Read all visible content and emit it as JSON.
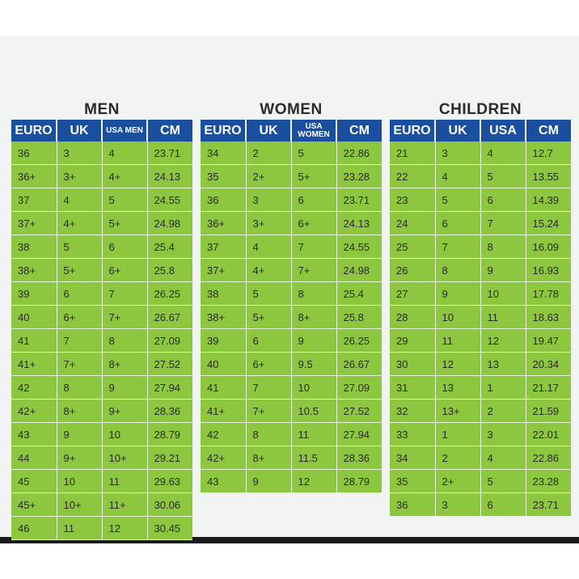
{
  "men": {
    "title": "MEN",
    "headers": [
      "EURO",
      "UK",
      "USA MEN",
      "CM"
    ],
    "rows": [
      [
        "36",
        "3",
        "4",
        "23.71"
      ],
      [
        "36+",
        "3+",
        "4+",
        "24.13"
      ],
      [
        "37",
        "4",
        "5",
        "24.55"
      ],
      [
        "37+",
        "4+",
        "5+",
        "24.98"
      ],
      [
        "38",
        "5",
        "6",
        "25.4"
      ],
      [
        "38+",
        "5+",
        "6+",
        "25.8"
      ],
      [
        "39",
        "6",
        "7",
        "26.25"
      ],
      [
        "40",
        "6+",
        "7+",
        "26.67"
      ],
      [
        "41",
        "7",
        "8",
        "27.09"
      ],
      [
        "41+",
        "7+",
        "8+",
        "27.52"
      ],
      [
        "42",
        "8",
        "9",
        "27.94"
      ],
      [
        "42+",
        "8+",
        "9+",
        "28.36"
      ],
      [
        "43",
        "9",
        "10",
        "28.79"
      ],
      [
        "44",
        "9+",
        "10+",
        "29.21"
      ],
      [
        "45",
        "10",
        "11",
        "29.63"
      ],
      [
        "45+",
        "10+",
        "11+",
        "30.06"
      ],
      [
        "46",
        "11",
        "12",
        "30.45"
      ]
    ]
  },
  "women": {
    "title": "WOMEN",
    "headers": [
      "EURO",
      "UK",
      "USA WOMEN",
      "CM"
    ],
    "rows": [
      [
        "34",
        "2",
        "5",
        "22.86"
      ],
      [
        "35",
        "2+",
        "5+",
        "23.28"
      ],
      [
        "36",
        "3",
        "6",
        "23.71"
      ],
      [
        "36+",
        "3+",
        "6+",
        "24.13"
      ],
      [
        "37",
        "4",
        "7",
        "24.55"
      ],
      [
        "37+",
        "4+",
        "7+",
        "24.98"
      ],
      [
        "38",
        "5",
        "8",
        "25.4"
      ],
      [
        "38+",
        "5+",
        "8+",
        "25.8"
      ],
      [
        "39",
        "6",
        "9",
        "26.25"
      ],
      [
        "40",
        "6+",
        "9.5",
        "26.67"
      ],
      [
        "41",
        "7",
        "10",
        "27.09"
      ],
      [
        "41+",
        "7+",
        "10.5",
        "27.52"
      ],
      [
        "42",
        "8",
        "11",
        "27.94"
      ],
      [
        "42+",
        "8+",
        "11.5",
        "28.36"
      ],
      [
        "43",
        "9",
        "12",
        "28.79"
      ]
    ]
  },
  "children": {
    "title": "CHILDREN",
    "headers": [
      "EURO",
      "UK",
      "USA",
      "CM"
    ],
    "rows": [
      [
        "21",
        "3",
        "4",
        "12.7"
      ],
      [
        "22",
        "4",
        "5",
        "13.55"
      ],
      [
        "23",
        "5",
        "6",
        "14.39"
      ],
      [
        "24",
        "6",
        "7",
        "15.24"
      ],
      [
        "25",
        "7",
        "8",
        "16.09"
      ],
      [
        "26",
        "8",
        "9",
        "16.93"
      ],
      [
        "27",
        "9",
        "10",
        "17.78"
      ],
      [
        "28",
        "10",
        "11",
        "18.63"
      ],
      [
        "29",
        "11",
        "12",
        "19.47"
      ],
      [
        "30",
        "12",
        "13",
        "20.34"
      ],
      [
        "31",
        "13",
        "1",
        "21.17"
      ],
      [
        "32",
        "13+",
        "2",
        "21.59"
      ],
      [
        "33",
        "1",
        "3",
        "22.01"
      ],
      [
        "34",
        "2",
        "4",
        "22.86"
      ],
      [
        "35",
        "2+",
        "5",
        "23.28"
      ],
      [
        "36",
        "3",
        "6",
        "23.71"
      ]
    ]
  },
  "colors": {
    "header_bg": "#1a4fa0",
    "cell_bg": "#8dc63f",
    "panel_bg": "#f2f3f3"
  }
}
